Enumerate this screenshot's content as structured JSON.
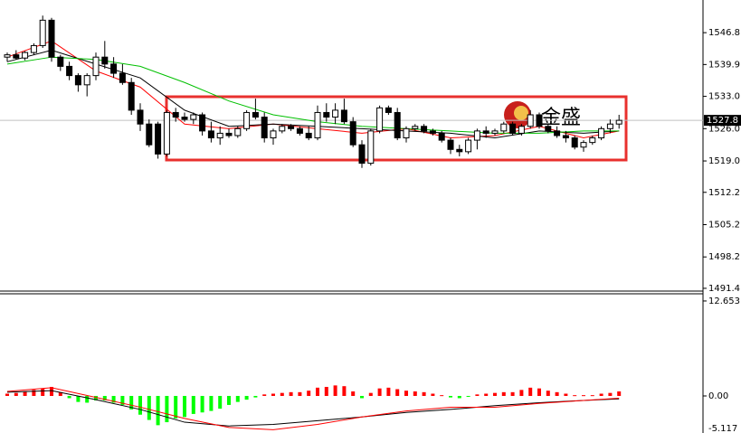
{
  "chart_data": [
    {
      "type": "candlestick",
      "open": [
        1541.5,
        1542.0,
        1541.3,
        1542.5,
        1544.0,
        1549.5,
        1541.5,
        1539.5,
        1537.5,
        1535.5,
        1537.5,
        1541.5,
        1540.0,
        1538.0,
        1536.0,
        1530.0,
        1527.0,
        1527.0,
        1520.5,
        1529.5,
        1528.5,
        1528.0,
        1529.0,
        1525.5,
        1524.0,
        1525.0,
        1524.5,
        1526.0,
        1529.5,
        1528.5,
        1524.0,
        1525.5,
        1526.5,
        1526.0,
        1525.0,
        1524.0,
        1529.5,
        1528.5,
        1530.0,
        1527.5,
        1522.5,
        1518.5,
        1525.5,
        1530.5,
        1529.5,
        1524.0,
        1526.0,
        1526.5,
        1525.5,
        1525.0,
        1523.5,
        1521.5,
        1521.0,
        1523.5,
        1525.5,
        1525.0,
        1525.5,
        1527.0,
        1525.0,
        1526.5,
        1529.0,
        1526.5,
        1525.5,
        1524.5,
        1524.0,
        1522.0,
        1523.0,
        1524.0,
        1526.0,
        1527.0
      ],
      "high": [
        1542.5,
        1543.0,
        1542.8,
        1544.5,
        1550.5,
        1550.0,
        1542.0,
        1540.5,
        1538.0,
        1538.0,
        1542.5,
        1545.0,
        1541.5,
        1540.0,
        1537.0,
        1531.5,
        1528.0,
        1527.5,
        1530.0,
        1530.5,
        1529.5,
        1529.5,
        1529.5,
        1527.5,
        1526.5,
        1526.0,
        1526.5,
        1530.0,
        1532.5,
        1529.5,
        1526.0,
        1527.0,
        1527.0,
        1526.5,
        1526.5,
        1531.0,
        1531.5,
        1531.5,
        1532.5,
        1528.5,
        1523.5,
        1526.0,
        1531.0,
        1531.0,
        1530.5,
        1526.5,
        1527.0,
        1527.0,
        1526.0,
        1525.5,
        1524.0,
        1522.5,
        1524.0,
        1526.0,
        1526.5,
        1526.0,
        1527.5,
        1527.5,
        1527.0,
        1530.0,
        1529.5,
        1527.0,
        1526.5,
        1525.5,
        1524.5,
        1523.5,
        1524.5,
        1526.5,
        1528.0,
        1529.0
      ],
      "low": [
        1540.5,
        1541.0,
        1540.8,
        1542.0,
        1543.5,
        1540.5,
        1538.5,
        1536.5,
        1534.0,
        1533.0,
        1536.5,
        1539.0,
        1537.0,
        1535.5,
        1529.0,
        1525.5,
        1522.0,
        1519.5,
        1520.0,
        1527.5,
        1527.5,
        1527.0,
        1524.5,
        1523.0,
        1522.5,
        1524.0,
        1524.0,
        1525.5,
        1528.0,
        1523.0,
        1522.5,
        1525.0,
        1525.5,
        1524.5,
        1523.5,
        1523.5,
        1527.5,
        1527.0,
        1527.0,
        1522.0,
        1517.5,
        1518.0,
        1525.0,
        1529.0,
        1523.5,
        1523.0,
        1525.5,
        1525.0,
        1524.5,
        1523.0,
        1520.5,
        1520.0,
        1520.5,
        1521.5,
        1524.0,
        1524.5,
        1525.0,
        1524.5,
        1524.5,
        1526.0,
        1526.0,
        1525.0,
        1524.0,
        1523.0,
        1521.5,
        1521.0,
        1522.5,
        1523.5,
        1525.0,
        1526.0
      ],
      "close": [
        1542.0,
        1541.3,
        1542.5,
        1544.0,
        1549.5,
        1541.5,
        1539.5,
        1537.5,
        1535.5,
        1537.5,
        1541.5,
        1540.0,
        1538.0,
        1536.0,
        1530.0,
        1527.0,
        1522.5,
        1520.5,
        1529.5,
        1528.5,
        1528.0,
        1529.0,
        1525.5,
        1524.0,
        1525.0,
        1524.5,
        1526.0,
        1529.5,
        1528.5,
        1524.0,
        1525.5,
        1526.5,
        1526.0,
        1525.0,
        1524.0,
        1529.5,
        1528.5,
        1530.0,
        1527.5,
        1522.5,
        1518.5,
        1525.5,
        1530.5,
        1529.5,
        1524.0,
        1526.0,
        1526.5,
        1525.5,
        1525.0,
        1523.5,
        1521.5,
        1521.0,
        1523.5,
        1525.5,
        1525.0,
        1525.5,
        1527.0,
        1525.0,
        1526.5,
        1529.0,
        1526.5,
        1525.5,
        1524.5,
        1524.0,
        1522.0,
        1523.0,
        1524.0,
        1526.0,
        1527.0,
        1527.8
      ],
      "up_color": "#ffffff",
      "down_color": "#000000",
      "lines_x": [
        0,
        5,
        10,
        15,
        20,
        25,
        30,
        35,
        40,
        45,
        50,
        55,
        60,
        65,
        69
      ],
      "series": [
        {
          "color": "#ff0000",
          "values": [
            1541.5,
            1545.0,
            1538.5,
            1535.0,
            1527.0,
            1526.0,
            1527.0,
            1526.0,
            1525.0,
            1526.0,
            1524.0,
            1524.5,
            1526.5,
            1524.0,
            1525.5
          ]
        },
        {
          "color": "#000000",
          "values": [
            1540.5,
            1543.0,
            1540.0,
            1537.0,
            1530.0,
            1526.5,
            1527.0,
            1526.5,
            1526.0,
            1525.5,
            1525.0,
            1524.0,
            1525.5,
            1525.0,
            1525.5
          ]
        },
        {
          "color": "#00c000",
          "values": [
            1540.0,
            1541.5,
            1541.0,
            1539.5,
            1536.0,
            1532.0,
            1529.0,
            1527.5,
            1526.5,
            1526.0,
            1525.5,
            1525.0,
            1525.0,
            1525.5,
            1525.5
          ]
        }
      ],
      "ylim": [
        1490.8,
        1552.9
      ],
      "yticks": [
        1546.8,
        1539.9,
        {
          "value": 1533,
          "label": "1533.0"
        },
        {
          "value": 1526,
          "label": "1526.0"
        },
        {
          "value": 1519,
          "label": "1519.0"
        },
        1512.2,
        1505.2,
        1498.2,
        1491.4
      ],
      "last_price": 1527.8,
      "watermark": "金盛"
    },
    {
      "type": "macd",
      "histogram": [
        0.3,
        0.4,
        0.6,
        0.8,
        1.0,
        1.2,
        0.5,
        -0.3,
        -0.8,
        -0.9,
        -0.6,
        -0.6,
        -0.9,
        -1.2,
        -1.8,
        -2.5,
        -3.2,
        -3.9,
        -3.5,
        -3.0,
        -2.8,
        -2.4,
        -2.2,
        -2.0,
        -1.7,
        -1.2,
        -0.8,
        -0.5,
        -0.2,
        0.2,
        0.3,
        0.4,
        0.5,
        0.5,
        0.7,
        1.1,
        1.2,
        1.4,
        1.3,
        0.6,
        -0.3,
        0.4,
        1.0,
        1.1,
        0.9,
        0.7,
        0.6,
        0.5,
        0.3,
        0.1,
        -0.2,
        -0.3,
        -0.1,
        0.2,
        0.3,
        0.4,
        0.5,
        0.5,
        0.8,
        1.1,
        1.0,
        0.7,
        0.5,
        0.3,
        0.1,
        0.1,
        0.1,
        0.3,
        0.4,
        0.6
      ],
      "positive_color": "#ff0000",
      "negative_color": "#00ff00",
      "lines_x": [
        0,
        5,
        10,
        15,
        20,
        25,
        30,
        35,
        40,
        45,
        50,
        55,
        60,
        65,
        69
      ],
      "series": [
        {
          "color": "#000000",
          "values": [
            0.5,
            0.7,
            -0.5,
            -1.8,
            -3.5,
            -4.0,
            -3.8,
            -3.3,
            -2.8,
            -2.2,
            -1.8,
            -1.3,
            -0.9,
            -0.6,
            -0.4
          ]
        },
        {
          "color": "#ff0000",
          "values": [
            0.6,
            1.1,
            -0.2,
            -1.5,
            -3.0,
            -4.2,
            -4.5,
            -3.8,
            -2.8,
            -2.0,
            -1.5,
            -1.5,
            -1.0,
            -0.6,
            -0.3
          ]
        }
      ],
      "ylim": [
        -4.94,
        13.37
      ],
      "yticks": [
        12.653,
        {
          "value": 0,
          "label": "0.00"
        },
        -5.117
      ]
    }
  ]
}
